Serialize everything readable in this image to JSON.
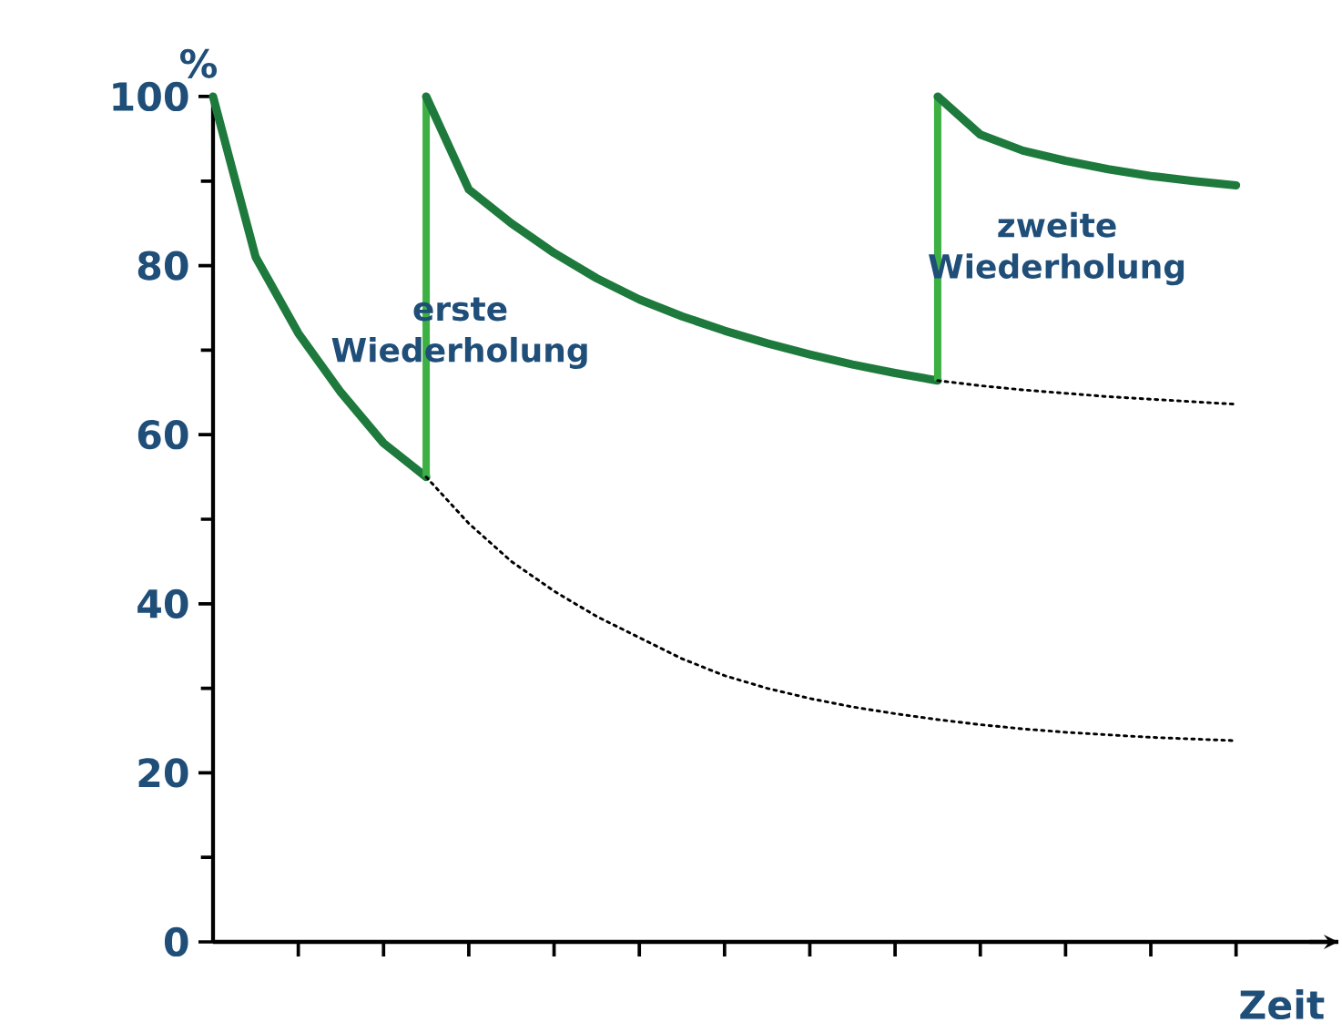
{
  "chart_data": {
    "type": "line",
    "xlabel": "Zeit",
    "ylabel": "%",
    "categories": [
      null,
      null,
      null,
      null,
      null,
      null,
      null,
      null,
      null,
      null,
      null,
      null,
      null,
      null,
      null,
      null,
      null,
      null,
      null,
      null,
      null,
      null,
      null,
      null,
      null
    ],
    "ylim": [
      0,
      100
    ],
    "yticks": [
      0,
      20,
      40,
      60,
      80,
      100
    ],
    "grid": false,
    "marker": "none",
    "series": [
      {
        "color": "#1e7a3c",
        "line_style": "solid",
        "values": [
          100,
          81,
          72,
          65,
          59,
          55,
          null,
          null,
          null,
          null,
          null,
          null,
          null,
          null,
          null,
          null,
          null,
          null,
          null,
          null,
          null,
          null,
          null,
          null,
          null
        ],
        "errors": [
          null,
          null,
          null,
          null,
          null,
          [
            55,
            100
          ],
          null,
          null,
          null,
          null,
          null,
          null,
          null,
          null,
          null,
          null,
          null,
          null,
          null,
          null,
          null,
          null,
          null,
          null,
          null
        ]
      },
      {
        "color": "#1e7a3c",
        "line_style": "solid",
        "values": [
          null,
          null,
          null,
          null,
          null,
          100,
          89,
          85,
          81.5,
          78.5,
          76,
          74,
          72.3,
          70.8,
          69.5,
          68.3,
          67.3,
          66.4,
          null,
          null,
          null,
          null,
          null,
          null,
          null
        ],
        "errors": [
          null,
          null,
          null,
          null,
          null,
          null,
          null,
          null,
          null,
          null,
          null,
          null,
          null,
          null,
          null,
          null,
          null,
          [
            66.4,
            100
          ],
          null,
          null,
          null,
          null,
          null,
          null,
          null
        ]
      },
      {
        "color": "#1e7a3c",
        "line_style": "solid",
        "values": [
          null,
          null,
          null,
          null,
          null,
          null,
          null,
          null,
          null,
          null,
          null,
          null,
          null,
          null,
          null,
          null,
          null,
          100,
          95.5,
          93.6,
          92.4,
          91.4,
          90.6,
          90,
          89.5
        ]
      },
      {
        "color": "#000000",
        "line_style": "dotted",
        "values": [
          null,
          null,
          null,
          null,
          null,
          55,
          49.5,
          45,
          41.5,
          38.5,
          36,
          33.5,
          31.5,
          30,
          28.8,
          27.8,
          27,
          26.3,
          25.7,
          25.2,
          24.8,
          24.5,
          24.2,
          24,
          23.8
        ]
      },
      {
        "color": "#000000",
        "line_style": "dotted",
        "values": [
          null,
          null,
          null,
          null,
          null,
          null,
          null,
          null,
          null,
          null,
          null,
          null,
          null,
          null,
          null,
          null,
          null,
          66.4,
          65.8,
          65.3,
          64.9,
          64.5,
          64.2,
          63.9,
          63.6
        ]
      }
    ],
    "annotations": [
      "erste Wiederholung",
      "zweite Wiederholung"
    ]
  }
}
